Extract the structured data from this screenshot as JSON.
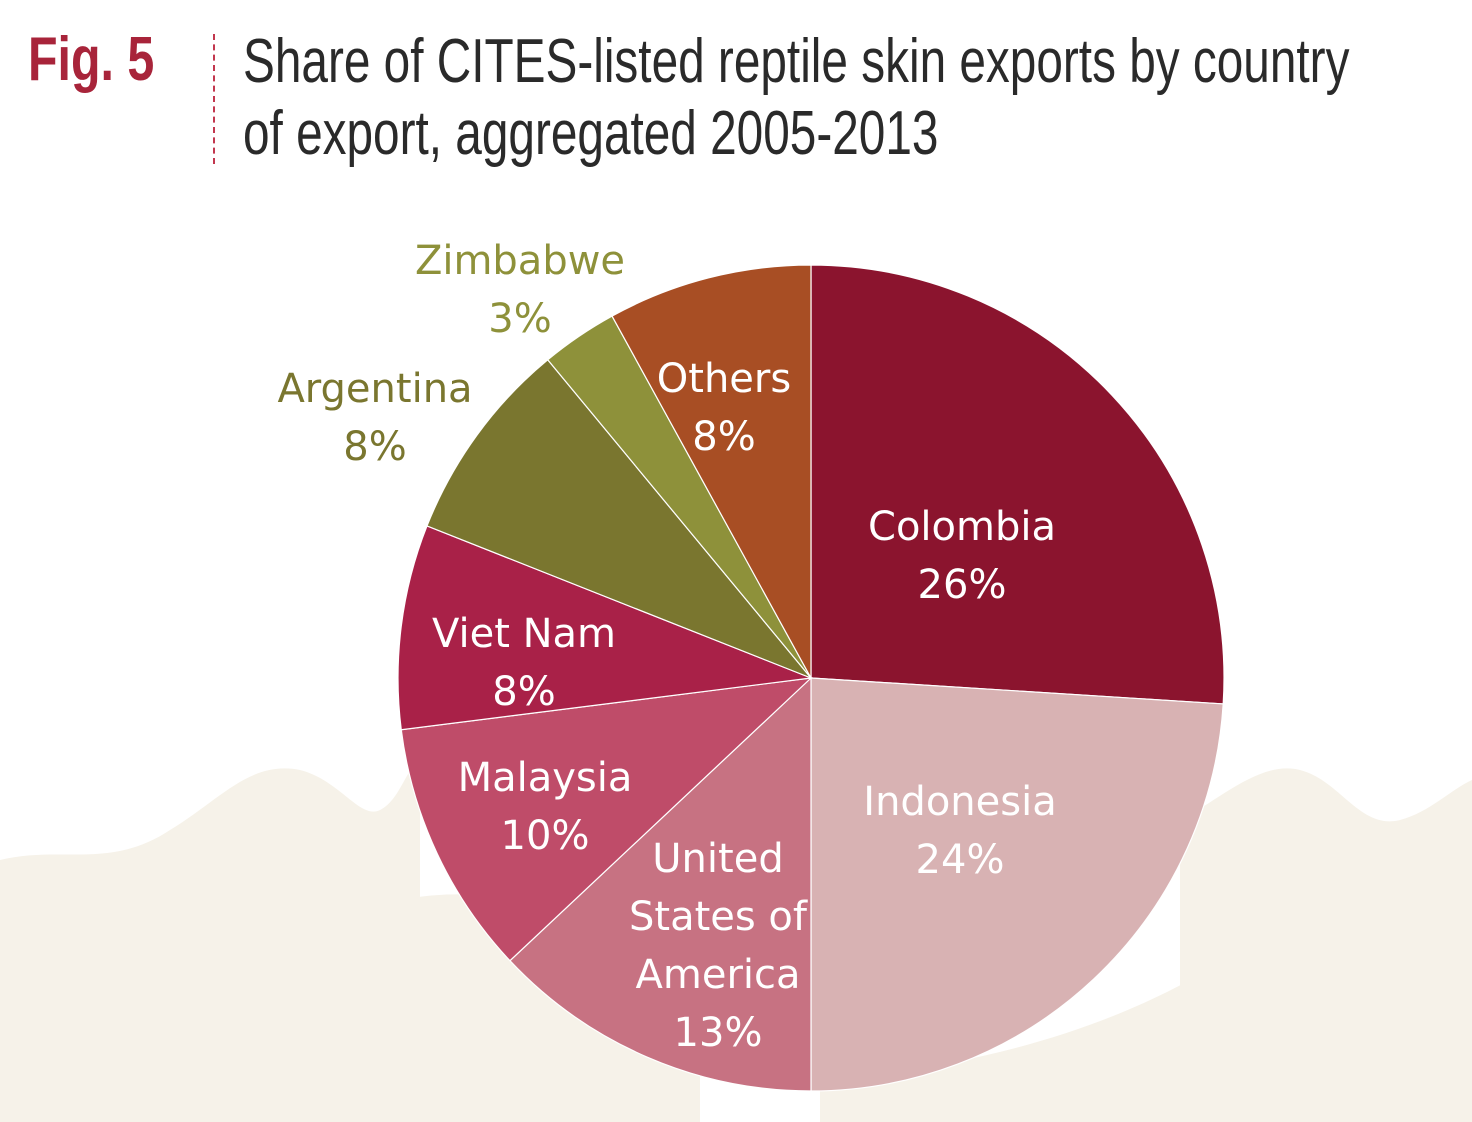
{
  "figure": {
    "number_label": "Fig. 5",
    "title": "Share of CITES-listed reptile skin exports by country of export, aggregated 2005-2013"
  },
  "colors": {
    "fig_label": "#a8243a",
    "divider": "#c2374e",
    "background_foliage": "#f6f2e9"
  },
  "chart_data": {
    "type": "pie",
    "title": "Share of CITES-listed reptile skin exports by country of export, aggregated 2005-2013",
    "start": "12 o'clock",
    "direction": "clockwise",
    "legend": "none (labels on slices)",
    "slices": [
      {
        "label": "Colombia",
        "value_label": "26%",
        "value": 26,
        "color": "#8b142e",
        "label_color": "#ffffff",
        "label_placement": "inside"
      },
      {
        "label": "Indonesia",
        "value_label": "24%",
        "value": 24,
        "color": "#d8b2b3",
        "label_color": "#ffffff",
        "label_placement": "inside"
      },
      {
        "label": "United States of America",
        "value_label": "13%",
        "value": 13,
        "color": "#c77282",
        "label_color": "#ffffff",
        "label_placement": "inside"
      },
      {
        "label": "Malaysia",
        "value_label": "10%",
        "value": 10,
        "color": "#bf4c69",
        "label_color": "#ffffff",
        "label_placement": "inside"
      },
      {
        "label": "Viet Nam",
        "value_label": "8%",
        "value": 8,
        "color": "#a92148",
        "label_color": "#ffffff",
        "label_placement": "inside"
      },
      {
        "label": "Argentina",
        "value_label": "8%",
        "value": 8,
        "color": "#7a762f",
        "label_color": "#7a762f",
        "label_placement": "outside"
      },
      {
        "label": "Zimbabwe",
        "value_label": "3%",
        "value": 3,
        "color": "#8e913a",
        "label_color": "#8e913a",
        "label_placement": "outside"
      },
      {
        "label": "Others",
        "value_label": "8%",
        "value": 8,
        "color": "#a84e24",
        "label_color": "#ffffff",
        "label_placement": "inside"
      }
    ]
  }
}
